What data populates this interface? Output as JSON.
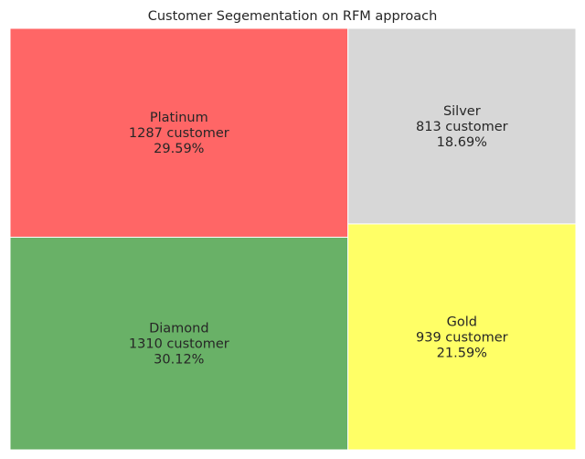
{
  "chart_data": {
    "type": "treemap",
    "title": "Customer Segementation on RFM approach",
    "series_unit_label": "customer",
    "items": [
      {
        "name": "Diamond",
        "count": 1310,
        "count_label": "1310 customer",
        "percent": 30.12,
        "percent_label": "30.12%",
        "color": "#69b167"
      },
      {
        "name": "Platinum",
        "count": 1287,
        "count_label": "1287 customer",
        "percent": 29.59,
        "percent_label": "29.59%",
        "color": "#ff6666"
      },
      {
        "name": "Gold",
        "count": 939,
        "count_label": "939 customer",
        "percent": 21.59,
        "percent_label": "21.59%",
        "color": "#ffff66"
      },
      {
        "name": "Silver",
        "count": 813,
        "count_label": "813 customer",
        "percent": 18.69,
        "percent_label": "18.69%",
        "color": "#d7d7d7"
      }
    ]
  }
}
